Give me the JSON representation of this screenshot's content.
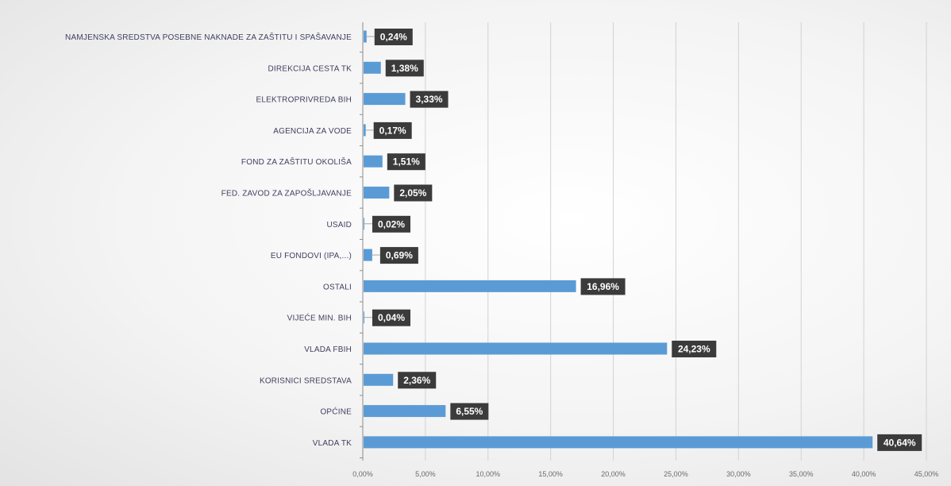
{
  "chart_data": {
    "type": "bar",
    "orientation": "horizontal",
    "categories": [
      "NAMJENSKA SREDSTVA POSEBNE NAKNADE ZA ZAŠTITU I SPAŠAVANJE",
      "DIREKCIJA CESTA TK",
      "ELEKTROPRIVREDA BIH",
      "AGENCIJA ZA VODE",
      "FOND ZA ZAŠTITU OKOLIŠA",
      "FED. ZAVOD ZA ZAPOŠLJAVANJE",
      "USAID",
      "EU FONDOVI (IPA,...)",
      "OSTALI",
      "VIJEĆE MIN. BIH",
      "VLADA FBIH",
      "KORISNICI SREDSTAVA",
      "OPĆINE",
      "VLADA TK"
    ],
    "values": [
      0.24,
      1.38,
      3.33,
      0.17,
      1.51,
      2.05,
      0.02,
      0.69,
      16.96,
      0.04,
      24.23,
      2.36,
      6.55,
      40.64
    ],
    "data_labels": [
      "0,24%",
      "1,38%",
      "3,33%",
      "0,17%",
      "1,51%",
      "2,05%",
      "0,02%",
      "0,69%",
      "16,96%",
      "0,04%",
      "24,23%",
      "2,36%",
      "6,55%",
      "40,64%"
    ],
    "x_ticks": [
      "0,00%",
      "5,00%",
      "10,00%",
      "15,00%",
      "20,00%",
      "25,00%",
      "30,00%",
      "35,00%",
      "40,00%",
      "45,00%"
    ],
    "xlim": [
      0,
      45
    ],
    "xlabel": "",
    "ylabel": "",
    "title": "",
    "grid": true,
    "legend": "none",
    "colors": {
      "bar": "#5b9bd5",
      "label_bg": "#3b3b3b",
      "label_text": "#ffffff",
      "grid": "#d2d2d2",
      "axis": "#8c8c8c"
    }
  }
}
